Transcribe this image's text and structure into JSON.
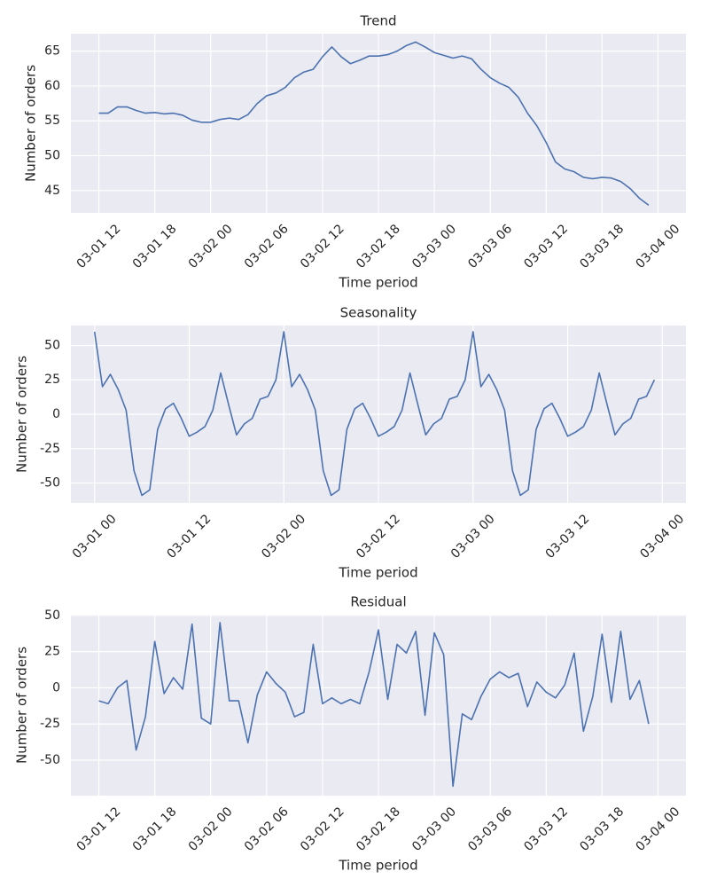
{
  "chart_data": [
    {
      "type": "line",
      "title": "Trend",
      "x_label": "Time period",
      "y_label": "Number of orders",
      "color": "#4c72b0",
      "grid": true,
      "x": [
        "03-01 12",
        "03-01 13",
        "03-01 14",
        "03-01 15",
        "03-01 16",
        "03-01 17",
        "03-01 18",
        "03-01 19",
        "03-01 20",
        "03-01 21",
        "03-01 22",
        "03-01 23",
        "03-02 00",
        "03-02 01",
        "03-02 02",
        "03-02 03",
        "03-02 04",
        "03-02 05",
        "03-02 06",
        "03-02 07",
        "03-02 08",
        "03-02 09",
        "03-02 10",
        "03-02 11",
        "03-02 12",
        "03-02 13",
        "03-02 14",
        "03-02 15",
        "03-02 16",
        "03-02 17",
        "03-02 18",
        "03-02 19",
        "03-02 20",
        "03-02 21",
        "03-02 22",
        "03-02 23",
        "03-03 00",
        "03-03 01",
        "03-03 02",
        "03-03 03",
        "03-03 04",
        "03-03 05",
        "03-03 06",
        "03-03 07",
        "03-03 08",
        "03-03 09",
        "03-03 10",
        "03-03 11",
        "03-03 12",
        "03-03 13",
        "03-03 14",
        "03-03 15",
        "03-03 16",
        "03-03 17",
        "03-03 18",
        "03-03 19",
        "03-03 20",
        "03-03 21",
        "03-03 22",
        "03-03 23"
      ],
      "values": [
        56.1,
        56.1,
        57.0,
        57.0,
        56.5,
        56.1,
        56.2,
        56.0,
        56.1,
        55.8,
        55.1,
        54.8,
        54.8,
        55.2,
        55.4,
        55.2,
        55.9,
        57.5,
        58.6,
        59.0,
        59.8,
        61.2,
        62.0,
        62.4,
        64.2,
        65.6,
        64.2,
        63.2,
        63.7,
        64.3,
        64.3,
        64.5,
        65.0,
        65.8,
        66.3,
        65.6,
        64.8,
        64.4,
        64.0,
        64.3,
        63.9,
        62.4,
        61.2,
        60.4,
        59.8,
        58.4,
        56.1,
        54.3,
        51.9,
        49.1,
        48.1,
        47.7,
        46.9,
        46.7,
        46.9,
        46.8,
        46.3,
        45.3,
        43.9,
        42.9
      ],
      "xlim": [
        "03-01 09",
        "03-04 03"
      ],
      "xticks": [
        "03-01 12",
        "03-01 18",
        "03-02 00",
        "03-02 06",
        "03-02 12",
        "03-02 18",
        "03-03 00",
        "03-03 06",
        "03-03 12",
        "03-03 18",
        "03-04 00"
      ],
      "ylim": [
        41.8,
        67.5
      ],
      "yticks": [
        45,
        50,
        55,
        60,
        65
      ]
    },
    {
      "type": "line",
      "title": "Seasonality",
      "x_label": "Time period",
      "y_label": "Number of orders",
      "color": "#4c72b0",
      "grid": true,
      "x": [
        "03-01 00",
        "03-01 01",
        "03-01 02",
        "03-01 03",
        "03-01 04",
        "03-01 05",
        "03-01 06",
        "03-01 07",
        "03-01 08",
        "03-01 09",
        "03-01 10",
        "03-01 11",
        "03-01 12",
        "03-01 13",
        "03-01 14",
        "03-01 15",
        "03-01 16",
        "03-01 17",
        "03-01 18",
        "03-01 19",
        "03-01 20",
        "03-01 21",
        "03-01 22",
        "03-01 23",
        "03-02 00",
        "03-02 01",
        "03-02 02",
        "03-02 03",
        "03-02 04",
        "03-02 05",
        "03-02 06",
        "03-02 07",
        "03-02 08",
        "03-02 09",
        "03-02 10",
        "03-02 11",
        "03-02 12",
        "03-02 13",
        "03-02 14",
        "03-02 15",
        "03-02 16",
        "03-02 17",
        "03-02 18",
        "03-02 19",
        "03-02 20",
        "03-02 21",
        "03-02 22",
        "03-02 23",
        "03-03 00",
        "03-03 01",
        "03-03 02",
        "03-03 03",
        "03-03 04",
        "03-03 05",
        "03-03 06",
        "03-03 07",
        "03-03 08",
        "03-03 09",
        "03-03 10",
        "03-03 11",
        "03-03 12",
        "03-03 13",
        "03-03 14",
        "03-03 15",
        "03-03 16",
        "03-03 17",
        "03-03 18",
        "03-03 19",
        "03-03 20",
        "03-03 21",
        "03-03 22",
        "03-03 23"
      ],
      "values": [
        60,
        20,
        29,
        18,
        3,
        -41,
        -59,
        -55,
        -11,
        4,
        8,
        -3,
        -16,
        -13,
        -9,
        3,
        30,
        7,
        -15,
        -7,
        -3,
        11,
        13,
        25,
        60,
        20,
        29,
        18,
        3,
        -41,
        -59,
        -55,
        -11,
        4,
        8,
        -3,
        -16,
        -13,
        -9,
        3,
        30,
        7,
        -15,
        -7,
        -3,
        11,
        13,
        25,
        60,
        20,
        29,
        18,
        3,
        -41,
        -59,
        -55,
        -11,
        4,
        8,
        -3,
        -16,
        -13,
        -9,
        3,
        30,
        7,
        -15,
        -7,
        -3,
        11,
        13,
        25
      ],
      "xlim": [
        "02-28 21",
        "03-04 03"
      ],
      "xticks": [
        "03-01 00",
        "03-01 12",
        "03-02 00",
        "03-02 12",
        "03-03 00",
        "03-03 12",
        "03-04 00"
      ],
      "ylim": [
        -64.5,
        64.5
      ],
      "yticks": [
        -50,
        -25,
        0,
        25,
        50
      ]
    },
    {
      "type": "line",
      "title": "Residual",
      "x_label": "Time period",
      "y_label": "Number of orders",
      "color": "#4c72b0",
      "grid": true,
      "x": [
        "03-01 12",
        "03-01 13",
        "03-01 14",
        "03-01 15",
        "03-01 16",
        "03-01 17",
        "03-01 18",
        "03-01 19",
        "03-01 20",
        "03-01 21",
        "03-01 22",
        "03-01 23",
        "03-02 00",
        "03-02 01",
        "03-02 02",
        "03-02 03",
        "03-02 04",
        "03-02 05",
        "03-02 06",
        "03-02 07",
        "03-02 08",
        "03-02 09",
        "03-02 10",
        "03-02 11",
        "03-02 12",
        "03-02 13",
        "03-02 14",
        "03-02 15",
        "03-02 16",
        "03-02 17",
        "03-02 18",
        "03-02 19",
        "03-02 20",
        "03-02 21",
        "03-02 22",
        "03-02 23",
        "03-03 00",
        "03-03 01",
        "03-03 02",
        "03-03 03",
        "03-03 04",
        "03-03 05",
        "03-03 06",
        "03-03 07",
        "03-03 08",
        "03-03 09",
        "03-03 10",
        "03-03 11",
        "03-03 12",
        "03-03 13",
        "03-03 14",
        "03-03 15",
        "03-03 16",
        "03-03 17",
        "03-03 18",
        "03-03 19",
        "03-03 20",
        "03-03 21",
        "03-03 22",
        "03-03 23"
      ],
      "values": [
        -9,
        -11,
        0,
        5,
        -43,
        -20,
        32,
        -4,
        7,
        -1,
        44,
        -21,
        -25,
        45,
        -9,
        -9,
        -38,
        -5,
        11,
        3,
        -3,
        -20,
        -17,
        30,
        -11,
        -7,
        -11,
        -8,
        -11,
        11,
        40,
        -8,
        30,
        24,
        39,
        -19,
        38,
        23,
        -68,
        -18,
        -22,
        -6,
        6,
        11,
        7,
        10,
        -13,
        4,
        -3,
        -7,
        2,
        24,
        -30,
        -6,
        37,
        -10,
        39,
        -8,
        5,
        -25
      ],
      "xlim": [
        "03-01 09",
        "03-04 03"
      ],
      "xticks": [
        "03-01 12",
        "03-01 18",
        "03-02 00",
        "03-02 06",
        "03-02 12",
        "03-02 18",
        "03-03 00",
        "03-03 06",
        "03-03 12",
        "03-03 18",
        "03-04 00"
      ],
      "ylim": [
        -74.5,
        50.5
      ],
      "yticks": [
        -50,
        -25,
        0,
        25,
        50
      ]
    }
  ]
}
